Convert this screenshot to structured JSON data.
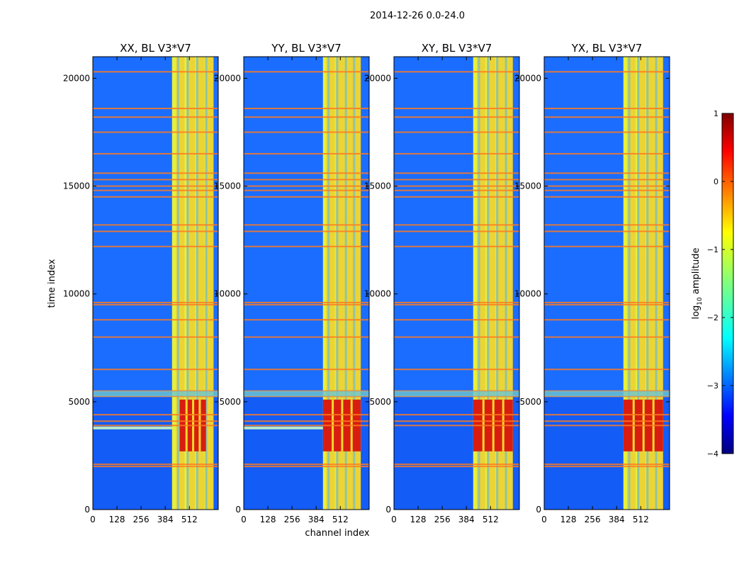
{
  "chart_data": {
    "type": "heatmap",
    "suptitle": "2014-12-26 0.0-24.0",
    "xlabel": "channel index",
    "ylabel": "time index",
    "xlim": [
      0,
      665
    ],
    "ylim": [
      0,
      21000
    ],
    "xticks": [
      0,
      128,
      256,
      384,
      512
    ],
    "xtick_labels": [
      "0",
      "128",
      "256",
      "384",
      "512"
    ],
    "yticks": [
      0,
      5000,
      10000,
      15000,
      20000
    ],
    "ytick_labels": [
      "0",
      "5000",
      "10000",
      "15000",
      "20000"
    ],
    "panels": [
      {
        "title": "XX, BL V3*V7",
        "band_start": 420,
        "band_end": 640,
        "hot_band": [
          460,
          600
        ],
        "strong_stripe": [
          3750,
          3850
        ]
      },
      {
        "title": "YY, BL V3*V7",
        "band_start": 420,
        "band_end": 620,
        "hot_band": [
          420,
          620
        ],
        "strong_stripe": [
          3750,
          3850
        ]
      },
      {
        "title": "XY, BL V3*V7",
        "band_start": 420,
        "band_end": 630,
        "hot_band": [
          420,
          630
        ],
        "strong_stripe": null
      },
      {
        "title": "YX, BL V3*V7",
        "band_start": 420,
        "band_end": 630,
        "hot_band": [
          420,
          630
        ],
        "strong_stripe": null
      }
    ],
    "flagged_times": [
      2000,
      2100,
      3900,
      4100,
      4400,
      5250,
      5500,
      6500,
      8000,
      8800,
      9500,
      9600,
      12200,
      12900,
      13200,
      14500,
      14800,
      15000,
      15300,
      15600,
      16500,
      17500,
      18200,
      18600,
      20300
    ],
    "hot_times": [
      2700,
      5100
    ],
    "colorbar": {
      "label": "log10 amplitude",
      "range": [
        -4,
        1
      ],
      "ticks": [
        1,
        0,
        -1,
        -2,
        -3,
        -4
      ],
      "tick_labels": [
        "1",
        "0",
        "−1",
        "−2",
        "−3",
        "−4"
      ],
      "colormap": "jet"
    }
  }
}
